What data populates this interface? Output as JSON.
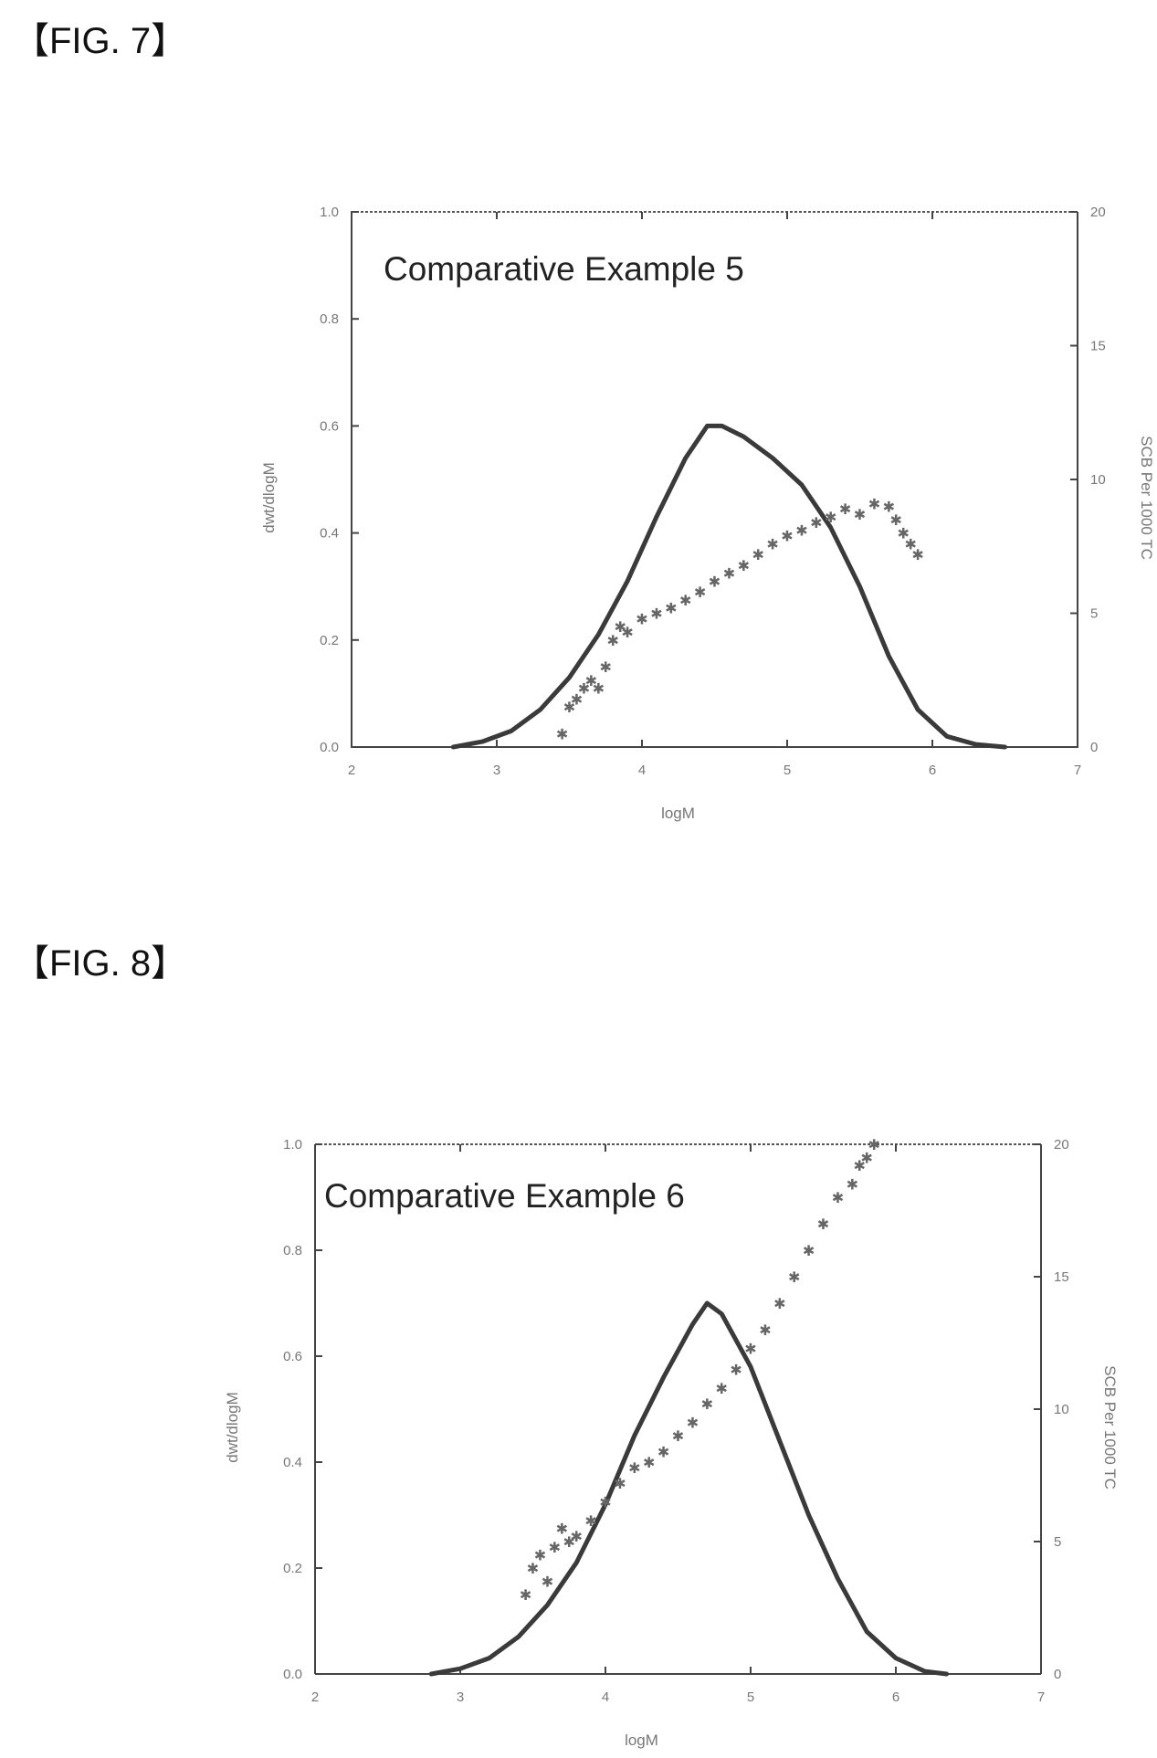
{
  "figures": [
    {
      "label": "【FIG. 7】",
      "chart_data": {
        "type": "line",
        "title": "Comparative Example 5",
        "xlabel": "logM",
        "ylabel": "dwt/dlogM",
        "y2label": "SCB Per 1000 TC",
        "xlim": [
          2,
          7
        ],
        "ylim": [
          0.0,
          1.0
        ],
        "y2lim": [
          0,
          20
        ],
        "xticks": [
          "2",
          "3",
          "4",
          "5",
          "6",
          "7"
        ],
        "yticks": [
          "0.0",
          "0.2",
          "0.4",
          "0.6",
          "0.8",
          "1.0"
        ],
        "y2ticks": [
          "0",
          "5",
          "10",
          "15",
          "20"
        ],
        "grid": false,
        "series": [
          {
            "axis": "left",
            "style": "line",
            "x": [
              2.7,
              2.9,
              3.1,
              3.3,
              3.5,
              3.7,
              3.9,
              4.1,
              4.3,
              4.45,
              4.55,
              4.7,
              4.9,
              5.1,
              5.3,
              5.5,
              5.7,
              5.9,
              6.1,
              6.3,
              6.5
            ],
            "y": [
              0.0,
              0.01,
              0.03,
              0.07,
              0.13,
              0.21,
              0.31,
              0.43,
              0.54,
              0.6,
              0.6,
              0.58,
              0.54,
              0.49,
              0.41,
              0.3,
              0.17,
              0.07,
              0.02,
              0.005,
              0.0
            ]
          },
          {
            "axis": "right",
            "style": "marker",
            "x": [
              3.45,
              3.5,
              3.55,
              3.6,
              3.65,
              3.7,
              3.75,
              3.8,
              3.85,
              3.9,
              4.0,
              4.1,
              4.2,
              4.3,
              4.4,
              4.5,
              4.6,
              4.7,
              4.8,
              4.9,
              5.0,
              5.1,
              5.2,
              5.3,
              5.4,
              5.5,
              5.6,
              5.7,
              5.75,
              5.8,
              5.85,
              5.9
            ],
            "y": [
              0.5,
              1.5,
              1.8,
              2.2,
              2.5,
              2.2,
              3.0,
              4.0,
              4.5,
              4.3,
              4.8,
              5.0,
              5.2,
              5.5,
              5.8,
              6.2,
              6.5,
              6.8,
              7.2,
              7.6,
              7.9,
              8.1,
              8.4,
              8.6,
              8.9,
              8.7,
              9.1,
              9.0,
              8.5,
              8.0,
              7.6,
              7.2
            ]
          }
        ]
      }
    },
    {
      "label": "【FIG. 8】",
      "chart_data": {
        "type": "line",
        "title": "Comparative Example 6",
        "xlabel": "logM",
        "ylabel": "dwt/dlogM",
        "y2label": "SCB Per 1000 TC",
        "xlim": [
          2,
          7
        ],
        "ylim": [
          0.0,
          1.0
        ],
        "y2lim": [
          0,
          20
        ],
        "xticks": [
          "2",
          "3",
          "4",
          "5",
          "6",
          "7"
        ],
        "yticks": [
          "0.0",
          "0.2",
          "0.4",
          "0.6",
          "0.8",
          "1.0"
        ],
        "y2ticks": [
          "0",
          "5",
          "10",
          "15",
          "20"
        ],
        "grid": false,
        "series": [
          {
            "axis": "left",
            "style": "line",
            "x": [
              2.8,
              3.0,
              3.2,
              3.4,
              3.6,
              3.8,
              4.0,
              4.2,
              4.4,
              4.6,
              4.7,
              4.8,
              5.0,
              5.2,
              5.4,
              5.6,
              5.8,
              6.0,
              6.2,
              6.35
            ],
            "y": [
              0.0,
              0.01,
              0.03,
              0.07,
              0.13,
              0.21,
              0.32,
              0.45,
              0.56,
              0.66,
              0.7,
              0.68,
              0.58,
              0.44,
              0.3,
              0.18,
              0.08,
              0.03,
              0.005,
              0.0
            ]
          },
          {
            "axis": "right",
            "style": "marker",
            "x": [
              3.45,
              3.5,
              3.55,
              3.6,
              3.65,
              3.7,
              3.75,
              3.8,
              3.9,
              4.0,
              4.1,
              4.2,
              4.3,
              4.4,
              4.5,
              4.6,
              4.7,
              4.8,
              4.9,
              5.0,
              5.1,
              5.2,
              5.3,
              5.4,
              5.5,
              5.6,
              5.7,
              5.75,
              5.8,
              5.85
            ],
            "y": [
              3.0,
              4.0,
              4.5,
              3.5,
              4.8,
              5.5,
              5.0,
              5.2,
              5.8,
              6.5,
              7.2,
              7.8,
              8.0,
              8.4,
              9.0,
              9.5,
              10.2,
              10.8,
              11.5,
              12.3,
              13.0,
              14.0,
              15.0,
              16.0,
              17.0,
              18.0,
              18.5,
              19.2,
              19.5,
              20.0
            ]
          }
        ]
      }
    }
  ]
}
